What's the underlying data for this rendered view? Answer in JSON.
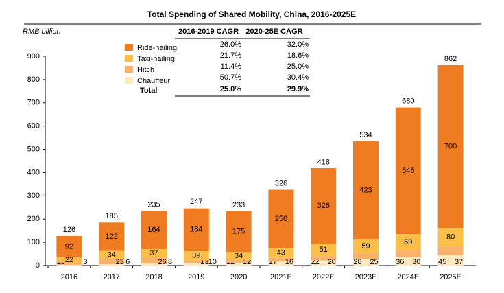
{
  "chart_data": {
    "type": "stacked_bar",
    "title": "Total Spending of Shared Mobility, China, 2016-2025E",
    "y_label": "RMB billion",
    "categories": [
      "2016",
      "2017",
      "2018",
      "2019",
      "2020",
      "2021E",
      "2022E",
      "2023E",
      "2024E",
      "2025E"
    ],
    "series": [
      {
        "name": "Chauffeur",
        "color": "#fde9bd",
        "values": [
          3,
          6,
          8,
          10,
          12,
          17,
          22,
          28,
          36,
          45
        ]
      },
      {
        "name": "Hitch",
        "color": "#f8b26c",
        "values": [
          10,
          23,
          26,
          13,
          12,
          16,
          20,
          25,
          30,
          37
        ]
      },
      {
        "name": "Taxi-hailing",
        "color": "#fbbf47",
        "values": [
          22,
          34,
          37,
          39,
          34,
          43,
          51,
          59,
          69,
          80
        ]
      },
      {
        "name": "Ride-hailing",
        "color": "#f07c22",
        "values": [
          92,
          122,
          164,
          184,
          175,
          250,
          326,
          423,
          545,
          700
        ]
      }
    ],
    "totals": [
      126,
      185,
      235,
      247,
      233,
      326,
      418,
      534,
      680,
      862
    ],
    "ylim": [
      0,
      900
    ],
    "yticks": [
      0,
      100,
      200,
      300,
      400,
      500,
      600,
      700,
      800,
      900
    ],
    "cagr_table": {
      "columns": [
        "2016-2019 CAGR",
        "2020-25E CAGR"
      ],
      "rows": [
        [
          "26.0%",
          "32.0%"
        ],
        [
          "21.7%",
          "18.6%"
        ],
        [
          "11.4%",
          "25.0%"
        ],
        [
          "50.7%",
          "30.4%"
        ]
      ],
      "total_label": "Total",
      "total": [
        "25.0%",
        "29.9%"
      ]
    }
  }
}
